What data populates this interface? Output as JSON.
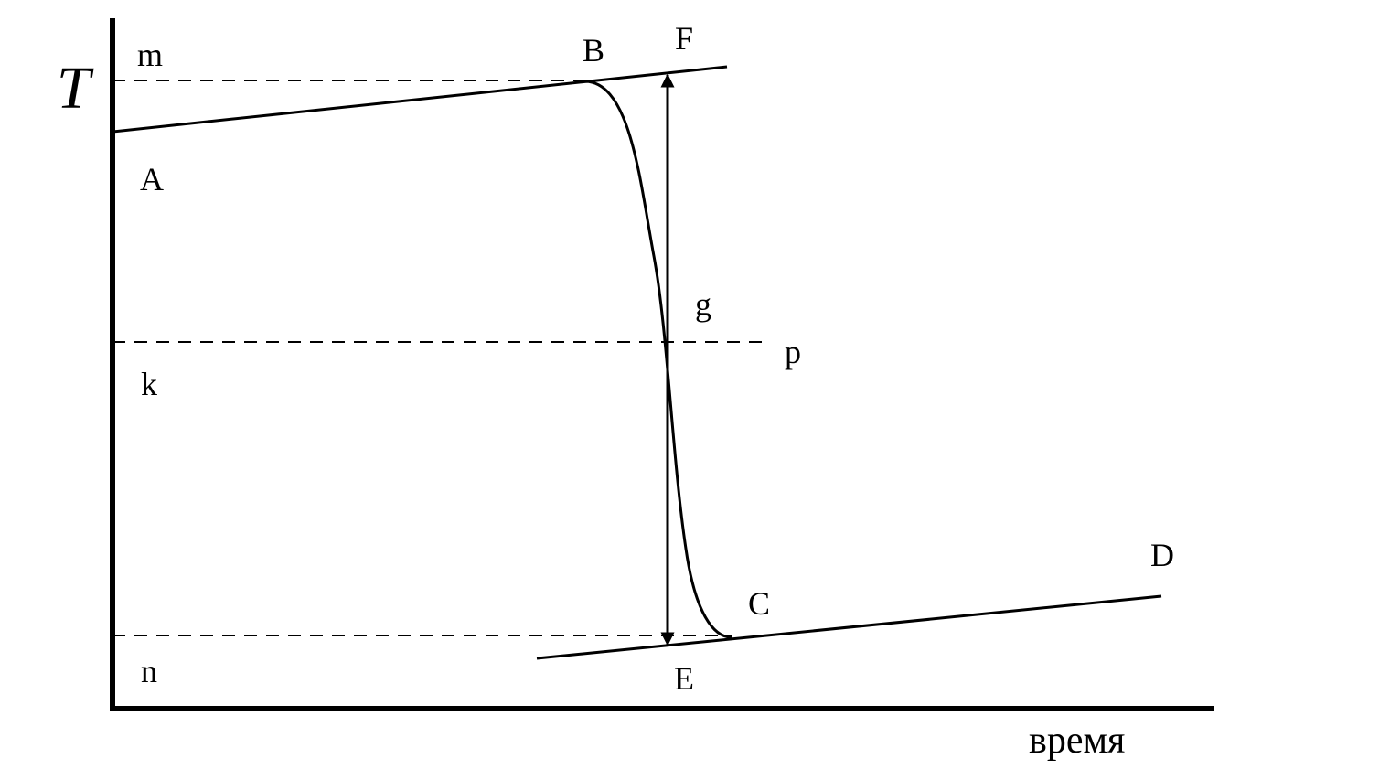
{
  "axes": {
    "y_label": "T",
    "x_label": "время"
  },
  "labels": [
    "m",
    "B",
    "F",
    "A",
    "g",
    "p",
    "k",
    "C",
    "D",
    "n",
    "E"
  ]
}
